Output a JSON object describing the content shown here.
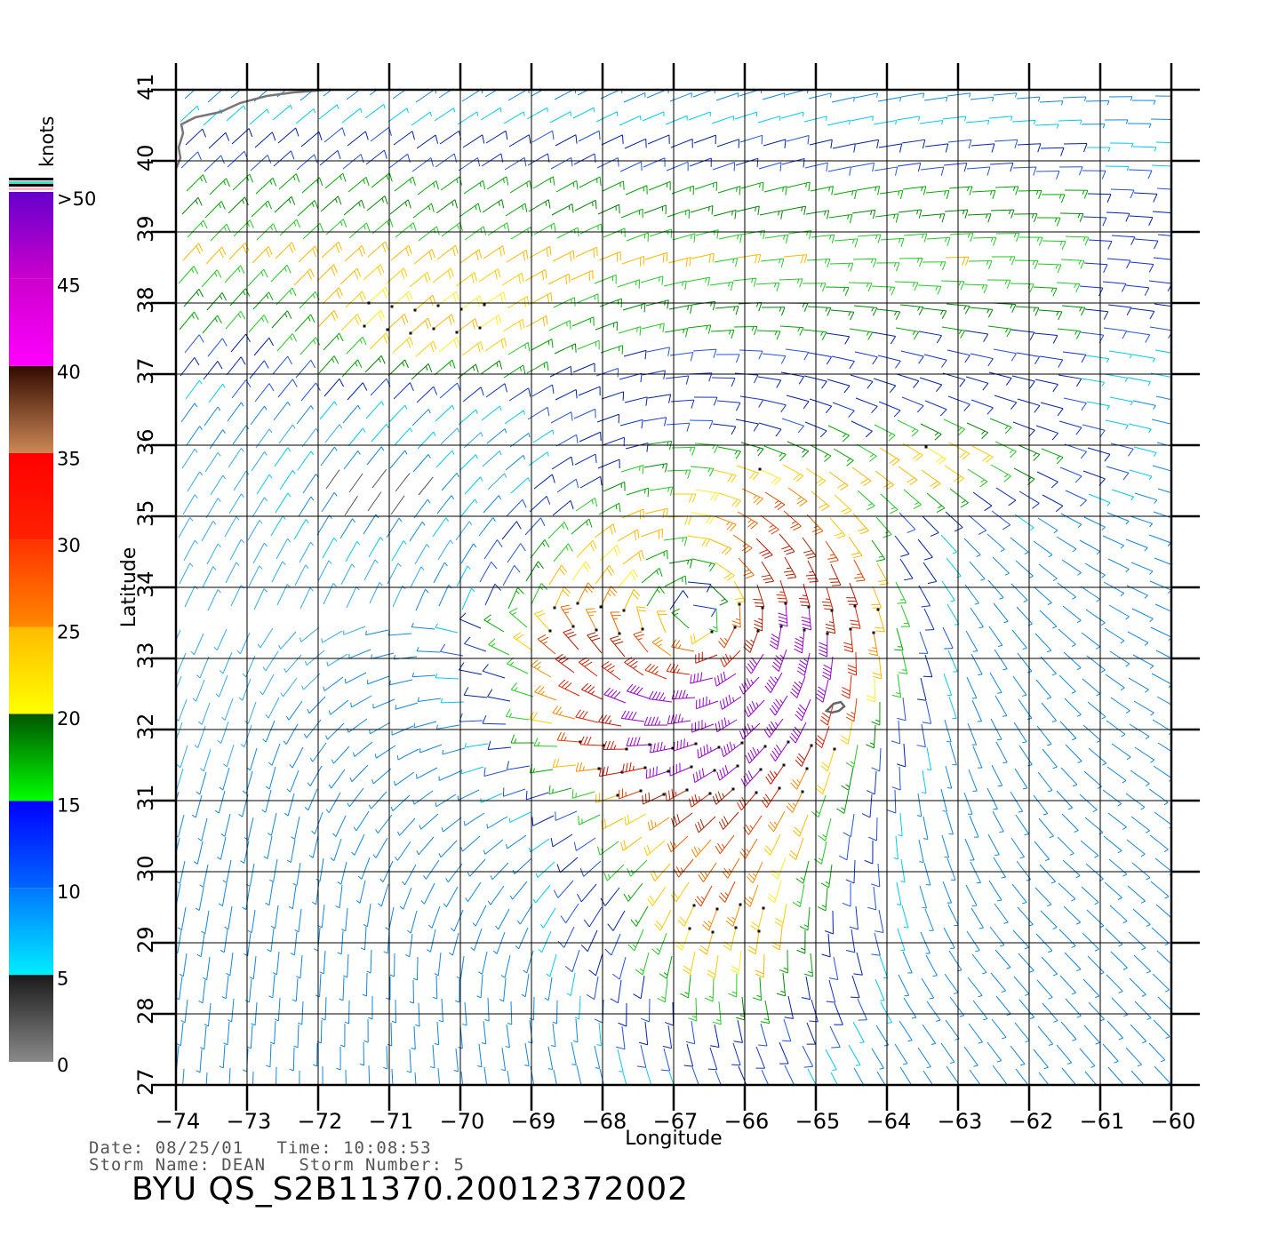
{
  "map": {
    "xlabel": "Longitude",
    "ylabel": "Latitude",
    "lon_ticks": [
      "−74",
      "−73",
      "−72",
      "−71",
      "−70",
      "−69",
      "−68",
      "−67",
      "−66",
      "−65",
      "−64",
      "−63",
      "−62",
      "−61",
      "−60"
    ],
    "lat_ticks": [
      "27",
      "28",
      "29",
      "30",
      "31",
      "32",
      "33",
      "34",
      "35",
      "36",
      "37",
      "38",
      "39",
      "40",
      "41"
    ],
    "lon_range": [
      -74,
      -60
    ],
    "lat_range": [
      27,
      41
    ],
    "grid": true,
    "storm_center": {
      "lon": -66.7,
      "lat": 33.6
    }
  },
  "colorbar": {
    "unit": "knots",
    "labels": [
      ">50",
      "45",
      "40",
      "35",
      "30",
      "25",
      "20",
      "15",
      "10",
      "5",
      "0"
    ],
    "bands": [
      {
        "from": 0,
        "to": 5,
        "top": "#1a1a1a",
        "bottom": "#8a8a8a"
      },
      {
        "from": 5,
        "to": 10,
        "top": "#0077ff",
        "bottom": "#00eeff"
      },
      {
        "from": 10,
        "to": 15,
        "top": "#0000ff",
        "bottom": "#0066ff"
      },
      {
        "from": 15,
        "to": 20,
        "top": "#005500",
        "bottom": "#00ff00"
      },
      {
        "from": 20,
        "to": 25,
        "top": "#ffbb00",
        "bottom": "#ffff00"
      },
      {
        "from": 25,
        "to": 30,
        "top": "#ff3300",
        "bottom": "#ff8800"
      },
      {
        "from": 30,
        "to": 35,
        "top": "#ff0000",
        "bottom": "#ff2200"
      },
      {
        "from": 35,
        "to": 40,
        "top": "#330a00",
        "bottom": "#cc8855"
      },
      {
        "from": 40,
        "to": 45,
        "top": "#cc00cc",
        "bottom": "#ff00ff"
      },
      {
        "from": 45,
        "to": 50,
        "top": "#6600cc",
        "bottom": "#cc00cc"
      }
    ]
  },
  "info": {
    "date_line": "Date: 08/25/01   Time: 10:08:53",
    "storm_line": "Storm Name: DEAN   Storm Number: 5",
    "product": "BYU  QS_S2B11370.20012372002"
  }
}
